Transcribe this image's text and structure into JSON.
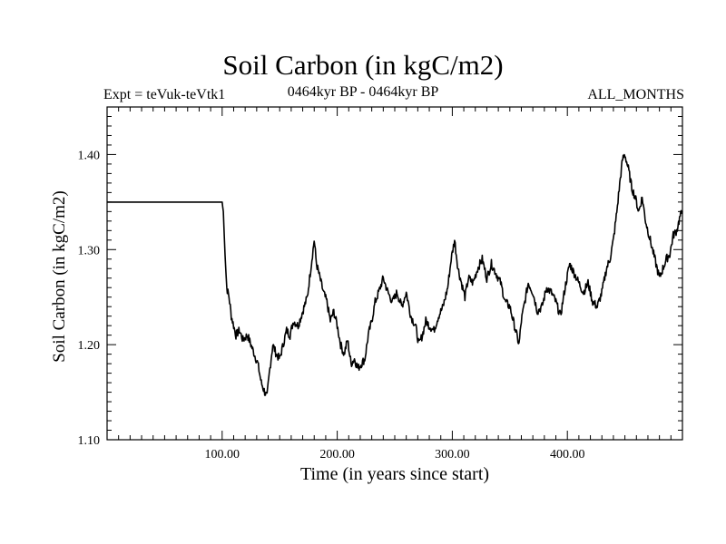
{
  "chart_data": {
    "type": "line",
    "title": "Soil Carbon (in kgC/m2)",
    "subtitle_left": "Expt = teVuk-teVtk1",
    "subtitle_center": "0464kyr BP - 0464kyr BP",
    "subtitle_right": "ALL_MONTHS",
    "xlabel": "Time (in years since start)",
    "ylabel": "Soil Carbon (in kgC/m2)",
    "xlim": [
      0,
      500
    ],
    "ylim": [
      1.1,
      1.45
    ],
    "x_ticks": [
      100,
      200,
      300,
      400
    ],
    "x_tick_labels": [
      "100.00",
      "200.00",
      "300.00",
      "400.00"
    ],
    "y_ticks": [
      1.1,
      1.2,
      1.3,
      1.4
    ],
    "y_tick_labels": [
      "1.10",
      "1.20",
      "1.30",
      "1.40"
    ],
    "grid": false,
    "series": [
      {
        "color": "#000000",
        "x": [
          0,
          100,
          101,
          102,
          104,
          106,
          108,
          110,
          112,
          115,
          118,
          122,
          125,
          128,
          131,
          134,
          137,
          139,
          141,
          144,
          147,
          150,
          153,
          156,
          159,
          162,
          166,
          170,
          174,
          178,
          180,
          182,
          185,
          188,
          191,
          194,
          197,
          200,
          203,
          206,
          209,
          212,
          215,
          218,
          221,
          224,
          227,
          230,
          233,
          236,
          240,
          244,
          248,
          252,
          256,
          260,
          264,
          268,
          271,
          274,
          277,
          280,
          284,
          288,
          292,
          296,
          299,
          302,
          305,
          308,
          311,
          314,
          318,
          322,
          326,
          330,
          334,
          338,
          342,
          346,
          350,
          353,
          356,
          358,
          360,
          363,
          366,
          370,
          374,
          378,
          382,
          386,
          390,
          394,
          398,
          402,
          406,
          410,
          414,
          418,
          422,
          426,
          430,
          434,
          437,
          440,
          443,
          446,
          448,
          450,
          453,
          456,
          459,
          462,
          465,
          468,
          471,
          474,
          477,
          480,
          483,
          486,
          489,
          492,
          495,
          498,
          500
        ],
        "y": [
          1.35,
          1.35,
          1.34,
          1.31,
          1.26,
          1.25,
          1.23,
          1.22,
          1.21,
          1.215,
          1.205,
          1.21,
          1.2,
          1.19,
          1.18,
          1.16,
          1.15,
          1.145,
          1.17,
          1.2,
          1.19,
          1.185,
          1.2,
          1.215,
          1.21,
          1.225,
          1.22,
          1.235,
          1.25,
          1.29,
          1.31,
          1.285,
          1.27,
          1.255,
          1.245,
          1.225,
          1.235,
          1.22,
          1.2,
          1.19,
          1.205,
          1.18,
          1.185,
          1.175,
          1.18,
          1.185,
          1.21,
          1.225,
          1.245,
          1.255,
          1.27,
          1.255,
          1.245,
          1.255,
          1.24,
          1.255,
          1.23,
          1.22,
          1.2,
          1.21,
          1.225,
          1.22,
          1.215,
          1.23,
          1.24,
          1.26,
          1.29,
          1.31,
          1.28,
          1.265,
          1.25,
          1.27,
          1.265,
          1.28,
          1.29,
          1.27,
          1.285,
          1.275,
          1.265,
          1.245,
          1.24,
          1.225,
          1.21,
          1.2,
          1.225,
          1.245,
          1.265,
          1.255,
          1.235,
          1.24,
          1.26,
          1.255,
          1.245,
          1.23,
          1.26,
          1.285,
          1.275,
          1.265,
          1.255,
          1.265,
          1.245,
          1.24,
          1.255,
          1.28,
          1.29,
          1.31,
          1.34,
          1.375,
          1.395,
          1.4,
          1.385,
          1.365,
          1.355,
          1.34,
          1.355,
          1.33,
          1.315,
          1.3,
          1.285,
          1.27,
          1.28,
          1.29,
          1.295,
          1.315,
          1.32,
          1.335,
          1.34
        ]
      }
    ]
  }
}
